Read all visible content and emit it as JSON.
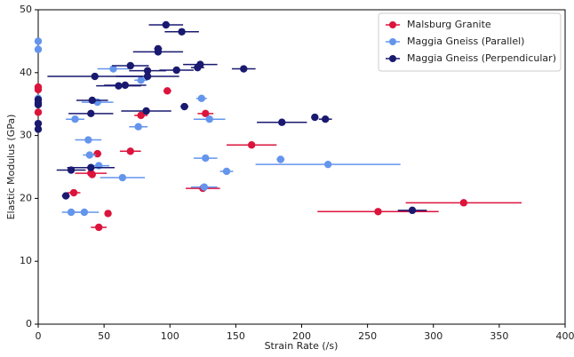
{
  "chart_data": {
    "type": "scatter",
    "x_label": "Strain Rate (/s)",
    "y_label": "Elastic Modulus (GPa)",
    "xlim": [
      0,
      400
    ],
    "xticks": [
      0,
      50,
      100,
      150,
      200,
      250,
      300,
      350,
      400
    ],
    "ylim": [
      0,
      50
    ],
    "yticks": [
      0,
      10,
      20,
      30,
      40,
      50
    ],
    "grid": false,
    "legend": "upper right",
    "series": [
      {
        "name": "Malsburg Granite",
        "color": "#dc143c",
        "x": [
          0,
          0,
          0,
          98,
          78,
          127,
          162,
          70,
          45,
          40,
          41,
          27,
          53,
          46,
          125,
          258,
          323
        ],
        "values": [
          37.7,
          37.3,
          33.7,
          37.1,
          33.2,
          33.5,
          28.5,
          27.5,
          27.1,
          24.0,
          23.8,
          20.9,
          17.6,
          15.4,
          21.6,
          17.9,
          19.3
        ],
        "xerr": [
          0,
          0,
          0,
          3,
          5,
          6,
          19,
          8,
          3,
          12,
          2,
          5,
          2,
          6,
          13,
          46,
          44
        ]
      },
      {
        "name": "Maggia Gneiss (Parallel)",
        "color": "#6495ed",
        "x": [
          0,
          0,
          0,
          57,
          78,
          124,
          45,
          28,
          130,
          38,
          76,
          127,
          184,
          220,
          143,
          39,
          46,
          64,
          126,
          25,
          35
        ],
        "values": [
          45.0,
          43.7,
          35.9,
          40.6,
          38.8,
          35.9,
          35.3,
          32.6,
          32.6,
          29.3,
          31.4,
          26.4,
          26.2,
          25.4,
          24.3,
          26.9,
          25.2,
          23.3,
          21.8,
          17.8,
          17.8
        ],
        "xerr": [
          0,
          0,
          0,
          12,
          5,
          4,
          12,
          7,
          12,
          10,
          7,
          9,
          3,
          55,
          5,
          5,
          8,
          17,
          10,
          7,
          11
        ]
      },
      {
        "name": "Maggia Gneiss (Perpendicular)",
        "color": "#191970",
        "x": [
          97,
          109,
          91,
          91,
          70,
          83,
          105,
          123,
          121,
          156,
          43,
          83,
          61,
          66,
          41,
          0,
          0,
          0,
          40,
          82,
          111,
          185,
          210,
          218,
          0,
          0,
          40,
          25,
          21,
          284
        ],
        "values": [
          47.6,
          46.5,
          43.8,
          43.3,
          41.1,
          40.3,
          40.4,
          41.3,
          40.8,
          40.6,
          39.4,
          39.4,
          37.9,
          38.0,
          35.6,
          35.7,
          35.2,
          34.9,
          33.5,
          33.9,
          34.6,
          32.1,
          32.9,
          32.6,
          31.9,
          31.0,
          24.9,
          24.5,
          20.4,
          18.1
        ],
        "xerr": [
          13,
          13,
          3,
          19,
          14,
          14,
          13,
          13,
          5,
          9,
          36,
          24,
          17,
          16,
          12,
          0,
          0,
          0,
          17,
          19,
          3,
          19,
          2,
          5,
          0,
          0,
          18,
          11,
          3,
          11
        ]
      }
    ]
  }
}
